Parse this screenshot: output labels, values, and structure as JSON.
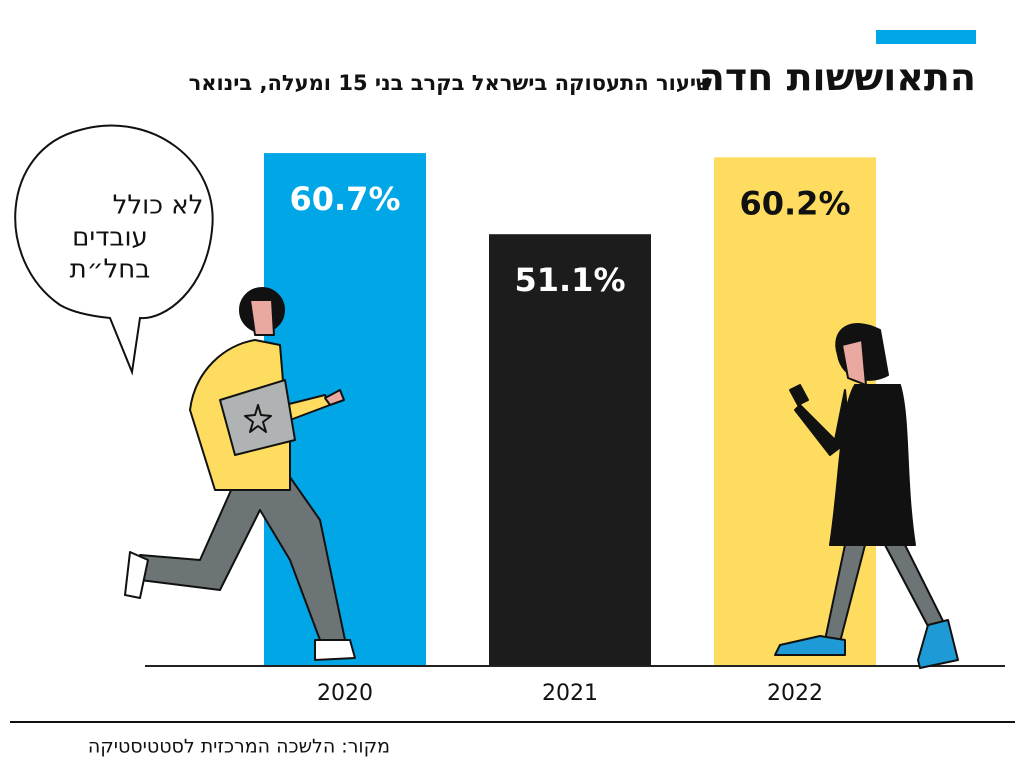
{
  "chart_data": {
    "type": "bar",
    "title": "התאוששות חדה",
    "subtitle": "שיעור התעסוקה בישראל בקרב בני 15 ומעלה, בינואר",
    "categories": [
      "2020",
      "2021",
      "2022"
    ],
    "values": [
      60.7,
      51.1,
      60.2
    ],
    "value_labels": [
      "60.7%",
      "51.1%",
      "60.2%"
    ],
    "colors": [
      "#00a6e6",
      "#1c1c1c",
      "#fddc5f"
    ],
    "ylim": [
      0,
      70
    ],
    "annotation": [
      "לא כולל",
      "עובדים",
      "בחל״ת"
    ],
    "source": "מקור: הלשכה המרכזית לסטטיסטיקה"
  }
}
